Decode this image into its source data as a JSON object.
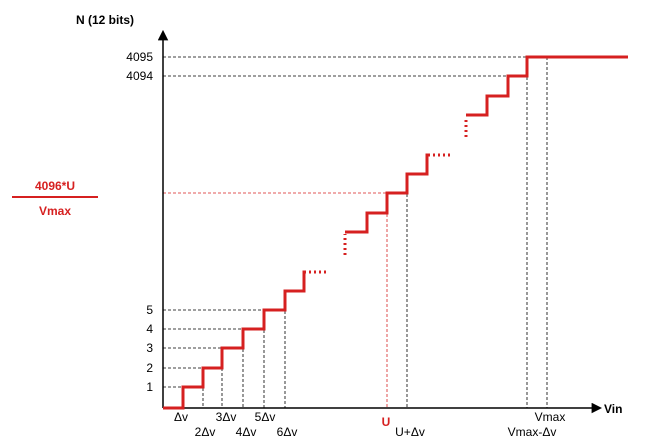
{
  "axis": {
    "y_label": "N (12 bits)",
    "x_label": "Vin"
  },
  "y_ticks": [
    "4095",
    "4094",
    "5",
    "4",
    "3",
    "2",
    "1"
  ],
  "x_ticks": [
    "Δv",
    "2Δv",
    "3Δv",
    "4Δv",
    "5Δv",
    "6Δv",
    "U+Δv",
    "Vmax",
    "Vmax-Δv"
  ],
  "u_label": "U",
  "annotation": {
    "numerator": "4096*U",
    "denominator": "Vmax"
  }
}
